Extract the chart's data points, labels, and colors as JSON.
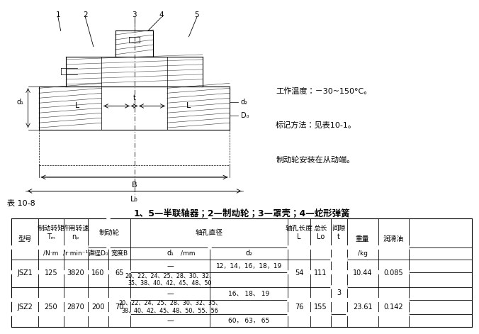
{
  "title_label": "1、5—半联轴器；2—制动轮；3—罩壳；4—蛇形弹簧",
  "table_title": "表 10-8",
  "notes": [
    "工作温度：－30~150°C。",
    "标记方法：见表10-1。",
    "制动轮安装在从动端。"
  ],
  "bg_color": "#ffffff",
  "line_color": "#000000",
  "font_size": 7.0
}
